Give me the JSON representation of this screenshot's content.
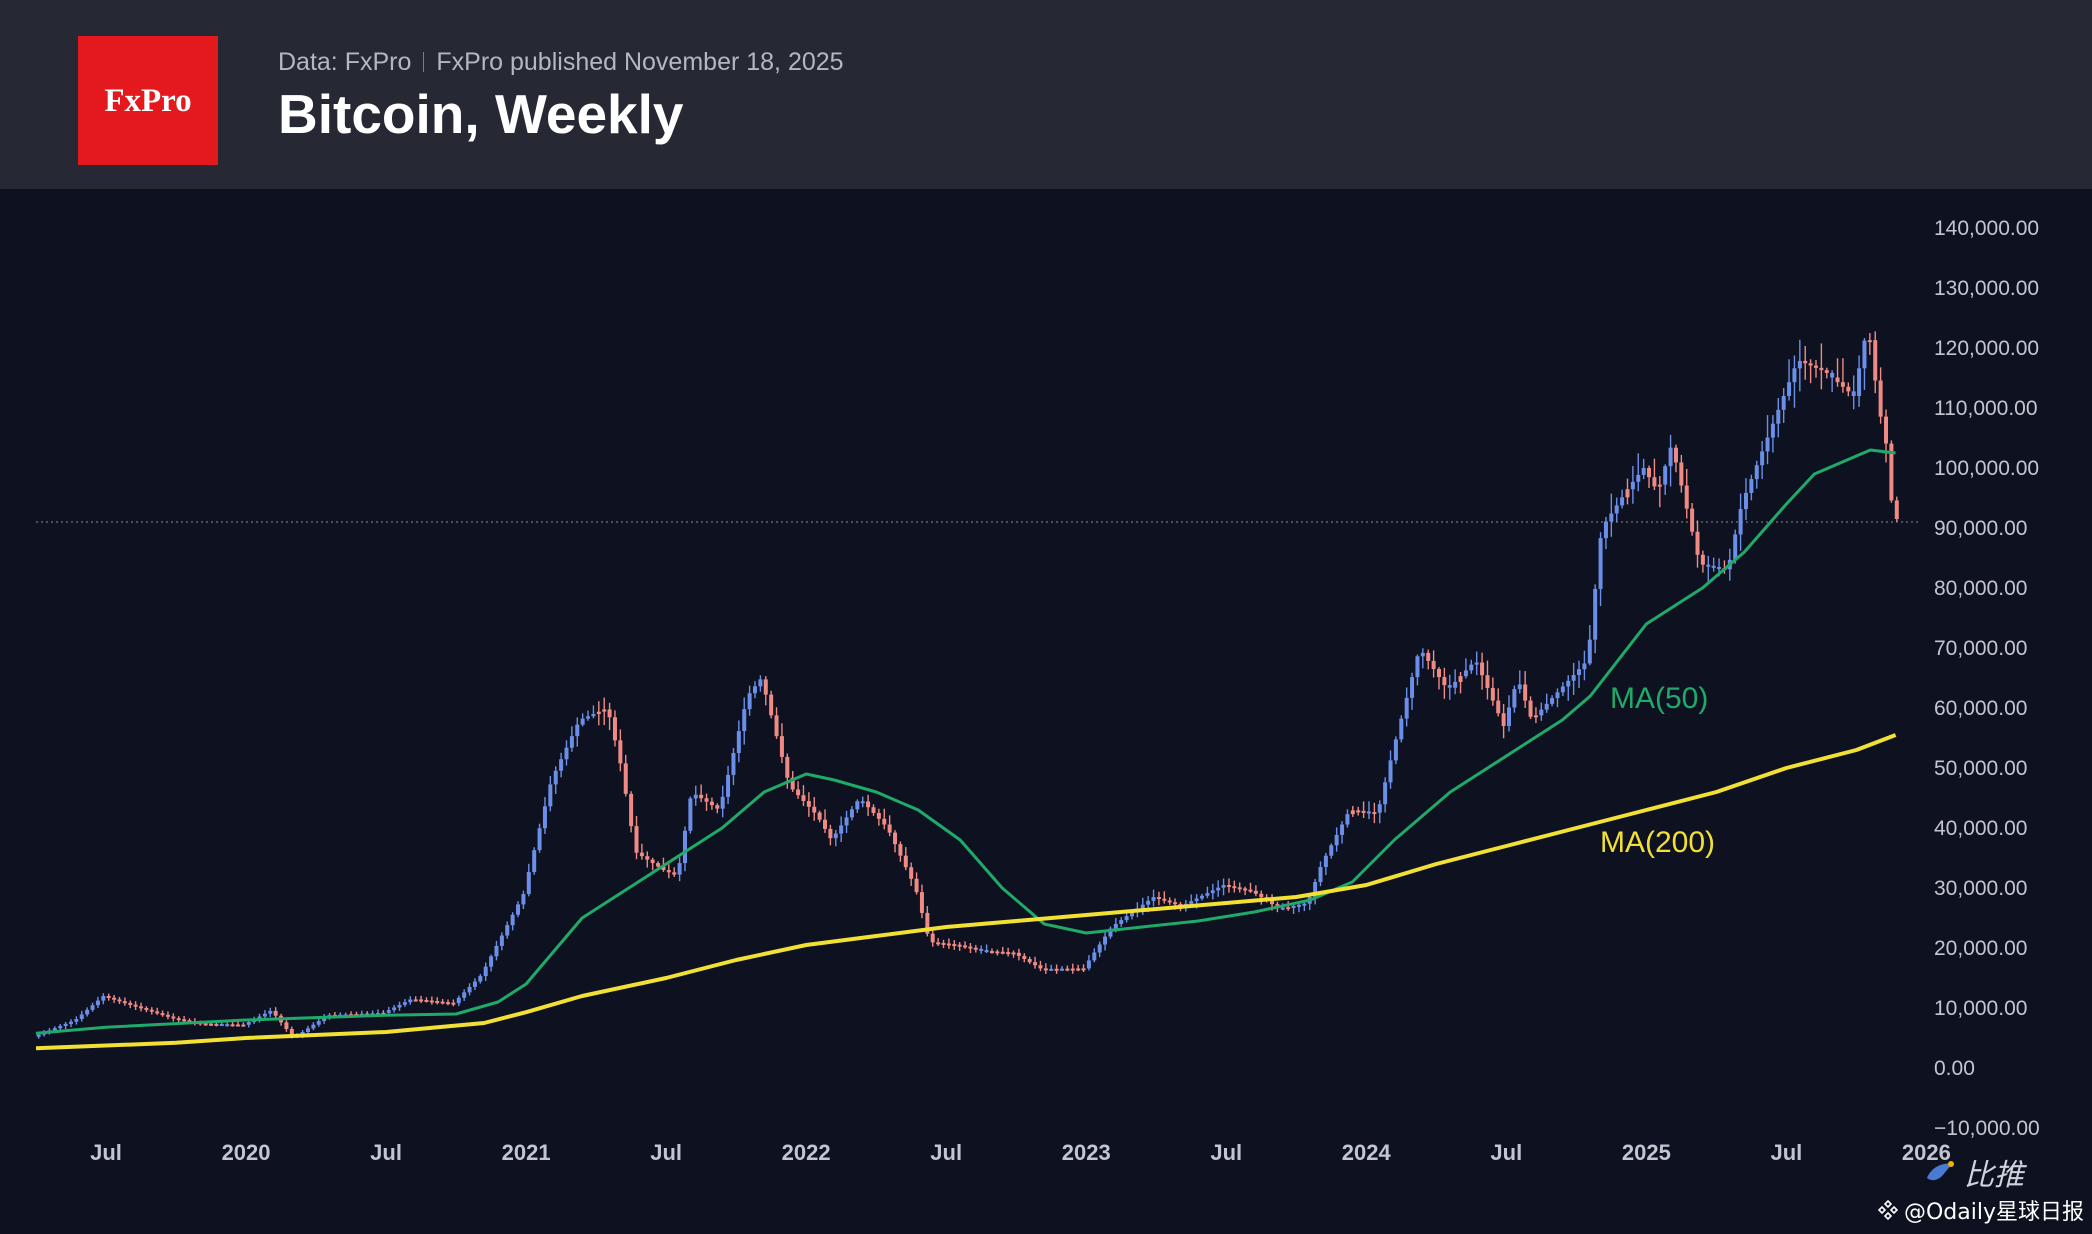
{
  "header": {
    "logo_text": "FxPro",
    "source": "Data: FxPro",
    "published": "FxPro published November 18, 2025",
    "title": "Bitcoin, Weekly"
  },
  "colors": {
    "background": "#0e1220",
    "header_bg": "#262834",
    "logo_bg": "#e3191e",
    "up_candle": "#6b8fe8",
    "down_candle": "#f08a84",
    "ma50": "#1faa6a",
    "ma200": "#f2e035"
  },
  "chart_data": {
    "type": "candlestick",
    "title": "Bitcoin, Weekly",
    "y_axis": {
      "ticks": [
        140000,
        130000,
        120000,
        110000,
        100000,
        90000,
        80000,
        70000,
        60000,
        50000,
        40000,
        30000,
        20000,
        10000,
        0,
        -10000
      ],
      "tick_labels": [
        "140,000.00",
        "130,000.00",
        "120,000.00",
        "110,000.00",
        "100,000.00",
        "90,000.00",
        "80,000.00",
        "70,000.00",
        "60,000.00",
        "50,000.00",
        "40,000.00",
        "30,000.00",
        "20,000.00",
        "10,000.00",
        "0.00",
        "−10,000.00"
      ],
      "range": [
        -10000,
        140000
      ],
      "position": "right"
    },
    "x_axis": {
      "range": [
        2019.25,
        2025.97
      ],
      "ticks": [
        {
          "t": 2019.5,
          "label": "Jul"
        },
        {
          "t": 2020.0,
          "label": "2020"
        },
        {
          "t": 2020.5,
          "label": "Jul"
        },
        {
          "t": 2021.0,
          "label": "2021"
        },
        {
          "t": 2021.5,
          "label": "Jul"
        },
        {
          "t": 2022.0,
          "label": "2022"
        },
        {
          "t": 2022.5,
          "label": "Jul"
        },
        {
          "t": 2023.0,
          "label": "2023"
        },
        {
          "t": 2023.5,
          "label": "Jul"
        },
        {
          "t": 2024.0,
          "label": "2024"
        },
        {
          "t": 2024.5,
          "label": "Jul"
        },
        {
          "t": 2025.0,
          "label": "2025"
        },
        {
          "t": 2025.5,
          "label": "Jul"
        },
        {
          "t": 2026.0,
          "label": "2026"
        }
      ]
    },
    "current_price_line": 91000,
    "price_path": [
      [
        2019.25,
        5200
      ],
      [
        2019.4,
        8000
      ],
      [
        2019.5,
        12000
      ],
      [
        2019.6,
        10500
      ],
      [
        2019.75,
        8300
      ],
      [
        2019.85,
        7400
      ],
      [
        2020.0,
        7200
      ],
      [
        2020.1,
        9600
      ],
      [
        2020.18,
        5000
      ],
      [
        2020.3,
        8800
      ],
      [
        2020.5,
        9200
      ],
      [
        2020.6,
        11500
      ],
      [
        2020.75,
        10800
      ],
      [
        2020.85,
        15500
      ],
      [
        2021.0,
        29000
      ],
      [
        2021.1,
        48000
      ],
      [
        2021.2,
        58000
      ],
      [
        2021.3,
        60000
      ],
      [
        2021.35,
        50000
      ],
      [
        2021.4,
        36000
      ],
      [
        2021.5,
        33000
      ],
      [
        2021.55,
        32000
      ],
      [
        2021.6,
        46000
      ],
      [
        2021.7,
        43000
      ],
      [
        2021.8,
        62000
      ],
      [
        2021.85,
        65000
      ],
      [
        2021.95,
        47000
      ],
      [
        2022.05,
        42000
      ],
      [
        2022.1,
        38000
      ],
      [
        2022.2,
        45000
      ],
      [
        2022.3,
        40000
      ],
      [
        2022.4,
        30000
      ],
      [
        2022.45,
        21000
      ],
      [
        2022.55,
        20500
      ],
      [
        2022.65,
        19500
      ],
      [
        2022.75,
        19200
      ],
      [
        2022.85,
        16500
      ],
      [
        2023.0,
        16600
      ],
      [
        2023.1,
        23500
      ],
      [
        2023.25,
        28500
      ],
      [
        2023.35,
        27000
      ],
      [
        2023.5,
        30500
      ],
      [
        2023.6,
        29500
      ],
      [
        2023.7,
        26500
      ],
      [
        2023.8,
        27500
      ],
      [
        2023.85,
        34000
      ],
      [
        2023.95,
        43000
      ],
      [
        2024.05,
        42500
      ],
      [
        2024.1,
        52000
      ],
      [
        2024.2,
        70000
      ],
      [
        2024.3,
        63000
      ],
      [
        2024.4,
        68000
      ],
      [
        2024.5,
        57000
      ],
      [
        2024.55,
        65000
      ],
      [
        2024.6,
        58000
      ],
      [
        2024.7,
        63000
      ],
      [
        2024.8,
        68000
      ],
      [
        2024.85,
        90000
      ],
      [
        2024.95,
        97000
      ],
      [
        2025.0,
        100000
      ],
      [
        2025.05,
        96000
      ],
      [
        2025.1,
        104000
      ],
      [
        2025.2,
        84000
      ],
      [
        2025.3,
        83000
      ],
      [
        2025.35,
        94000
      ],
      [
        2025.45,
        106000
      ],
      [
        2025.55,
        118000
      ],
      [
        2025.65,
        116000
      ],
      [
        2025.75,
        112000
      ],
      [
        2025.8,
        124000
      ],
      [
        2025.84,
        110000
      ],
      [
        2025.87,
        103000
      ],
      [
        2025.89,
        91500
      ]
    ],
    "series": [
      {
        "name": "MA(50)",
        "label": "MA(50)",
        "color": "#1faa6a",
        "points": [
          [
            2019.25,
            5800
          ],
          [
            2019.5,
            6800
          ],
          [
            2020.0,
            8000
          ],
          [
            2020.5,
            8800
          ],
          [
            2020.75,
            9000
          ],
          [
            2020.9,
            11000
          ],
          [
            2021.0,
            14000
          ],
          [
            2021.1,
            19500
          ],
          [
            2021.2,
            25000
          ],
          [
            2021.3,
            28000
          ],
          [
            2021.5,
            34000
          ],
          [
            2021.7,
            40000
          ],
          [
            2021.85,
            46000
          ],
          [
            2022.0,
            49000
          ],
          [
            2022.1,
            48000
          ],
          [
            2022.25,
            46000
          ],
          [
            2022.4,
            43000
          ],
          [
            2022.55,
            38000
          ],
          [
            2022.7,
            30000
          ],
          [
            2022.85,
            24000
          ],
          [
            2023.0,
            22500
          ],
          [
            2023.2,
            23500
          ],
          [
            2023.4,
            24500
          ],
          [
            2023.6,
            26000
          ],
          [
            2023.8,
            28000
          ],
          [
            2023.95,
            31000
          ],
          [
            2024.1,
            38000
          ],
          [
            2024.3,
            46000
          ],
          [
            2024.5,
            52000
          ],
          [
            2024.7,
            58000
          ],
          [
            2024.8,
            62000
          ],
          [
            2024.9,
            68000
          ],
          [
            2025.0,
            74000
          ],
          [
            2025.1,
            77000
          ],
          [
            2025.2,
            80000
          ],
          [
            2025.35,
            86000
          ],
          [
            2025.5,
            94000
          ],
          [
            2025.6,
            99000
          ],
          [
            2025.7,
            101000
          ],
          [
            2025.8,
            103000
          ],
          [
            2025.89,
            102500
          ]
        ]
      },
      {
        "name": "MA(200)",
        "label": "MA(200)",
        "color": "#f2e035",
        "points": [
          [
            2019.25,
            3300
          ],
          [
            2019.75,
            4200
          ],
          [
            2020.0,
            5000
          ],
          [
            2020.5,
            6000
          ],
          [
            2020.85,
            7500
          ],
          [
            2021.0,
            9300
          ],
          [
            2021.2,
            12000
          ],
          [
            2021.5,
            15000
          ],
          [
            2021.75,
            18000
          ],
          [
            2022.0,
            20500
          ],
          [
            2022.25,
            22000
          ],
          [
            2022.5,
            23500
          ],
          [
            2022.75,
            24500
          ],
          [
            2023.0,
            25500
          ],
          [
            2023.25,
            26500
          ],
          [
            2023.5,
            27500
          ],
          [
            2023.75,
            28500
          ],
          [
            2024.0,
            30500
          ],
          [
            2024.25,
            34000
          ],
          [
            2024.5,
            37000
          ],
          [
            2024.75,
            40000
          ],
          [
            2025.0,
            43000
          ],
          [
            2025.25,
            46000
          ],
          [
            2025.5,
            50000
          ],
          [
            2025.75,
            53000
          ],
          [
            2025.89,
            55500
          ]
        ]
      }
    ]
  },
  "watermark": {
    "brand": "比推",
    "handle": "@Odaily星球日报"
  }
}
